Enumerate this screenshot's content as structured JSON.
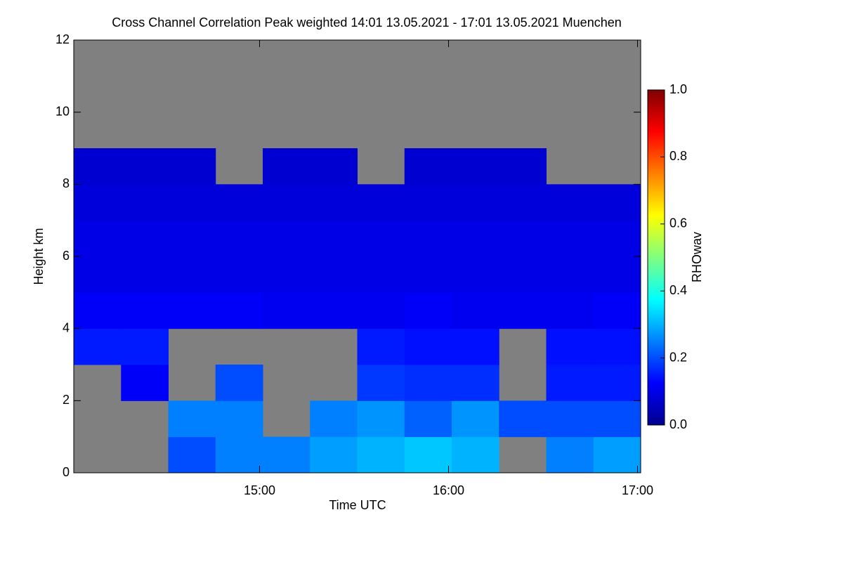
{
  "chart_data": {
    "type": "heatmap",
    "title": "Cross Channel Correlation Peak weighted   14:01 13.05.2021 - 17:01 13.05.2021 Muenchen",
    "x_label": "Time UTC",
    "y_label": "Height km",
    "colorbar_label": "RHOwav",
    "colormap": "jet",
    "missing_color": "#808080",
    "xlim": [
      14.0167,
      17.0167
    ],
    "xticks": [
      {
        "value": 15,
        "label": "15:00"
      },
      {
        "value": 16,
        "label": "16:00"
      },
      {
        "value": 17,
        "label": "17:00"
      }
    ],
    "ylim": [
      0,
      12
    ],
    "yticks": [
      0,
      2,
      4,
      6,
      8,
      10,
      12
    ],
    "zlim": [
      0,
      1
    ],
    "zticks": [
      {
        "value": 0,
        "label": "0.0"
      },
      {
        "value": 0.2,
        "label": "0.2"
      },
      {
        "value": 0.4,
        "label": "0.4"
      },
      {
        "value": 0.6,
        "label": "0.6"
      },
      {
        "value": 0.8,
        "label": "0.8"
      },
      {
        "value": 1,
        "label": "1.0"
      }
    ],
    "x_bins": [
      14.0167,
      14.2667,
      14.5167,
      14.7667,
      15.0167,
      15.2667,
      15.5167,
      15.7667,
      16.0167,
      16.2667,
      16.5167,
      16.7667,
      17.0167
    ],
    "y_bins": [
      0,
      1,
      2,
      3,
      4,
      5,
      6,
      7,
      8,
      9,
      10,
      11,
      12
    ],
    "values": [
      [
        null,
        null,
        0.2,
        0.25,
        0.25,
        0.28,
        0.3,
        0.32,
        0.3,
        null,
        0.25,
        0.28
      ],
      [
        null,
        null,
        0.25,
        0.25,
        null,
        0.25,
        0.27,
        0.22,
        0.27,
        0.2,
        0.2,
        0.2
      ],
      [
        null,
        0.12,
        null,
        0.2,
        null,
        null,
        0.18,
        0.17,
        0.17,
        null,
        0.15,
        0.15
      ],
      [
        0.15,
        0.15,
        null,
        null,
        null,
        null,
        0.15,
        0.14,
        0.14,
        null,
        0.14,
        0.14
      ],
      [
        0.12,
        0.12,
        0.12,
        0.12,
        0.11,
        0.11,
        0.11,
        0.12,
        0.11,
        0.11,
        0.11,
        0.12
      ],
      [
        0.1,
        0.1,
        0.1,
        0.1,
        0.1,
        0.1,
        0.1,
        0.1,
        0.1,
        0.1,
        0.1,
        0.1
      ],
      [
        0.1,
        0.1,
        0.1,
        0.1,
        0.1,
        0.1,
        0.1,
        0.1,
        0.1,
        0.1,
        0.1,
        0.1
      ],
      [
        0.09,
        0.09,
        0.09,
        0.09,
        0.09,
        0.09,
        0.09,
        0.09,
        0.09,
        0.09,
        0.09,
        0.09
      ],
      [
        0.08,
        0.08,
        0.08,
        null,
        0.08,
        0.08,
        null,
        0.08,
        0.08,
        0.08,
        null,
        null
      ],
      [
        null,
        null,
        null,
        null,
        null,
        null,
        null,
        null,
        null,
        null,
        null,
        null
      ],
      [
        null,
        null,
        null,
        null,
        null,
        null,
        null,
        null,
        null,
        null,
        null,
        null
      ],
      [
        null,
        null,
        null,
        null,
        null,
        null,
        null,
        null,
        null,
        null,
        null,
        null
      ]
    ]
  }
}
